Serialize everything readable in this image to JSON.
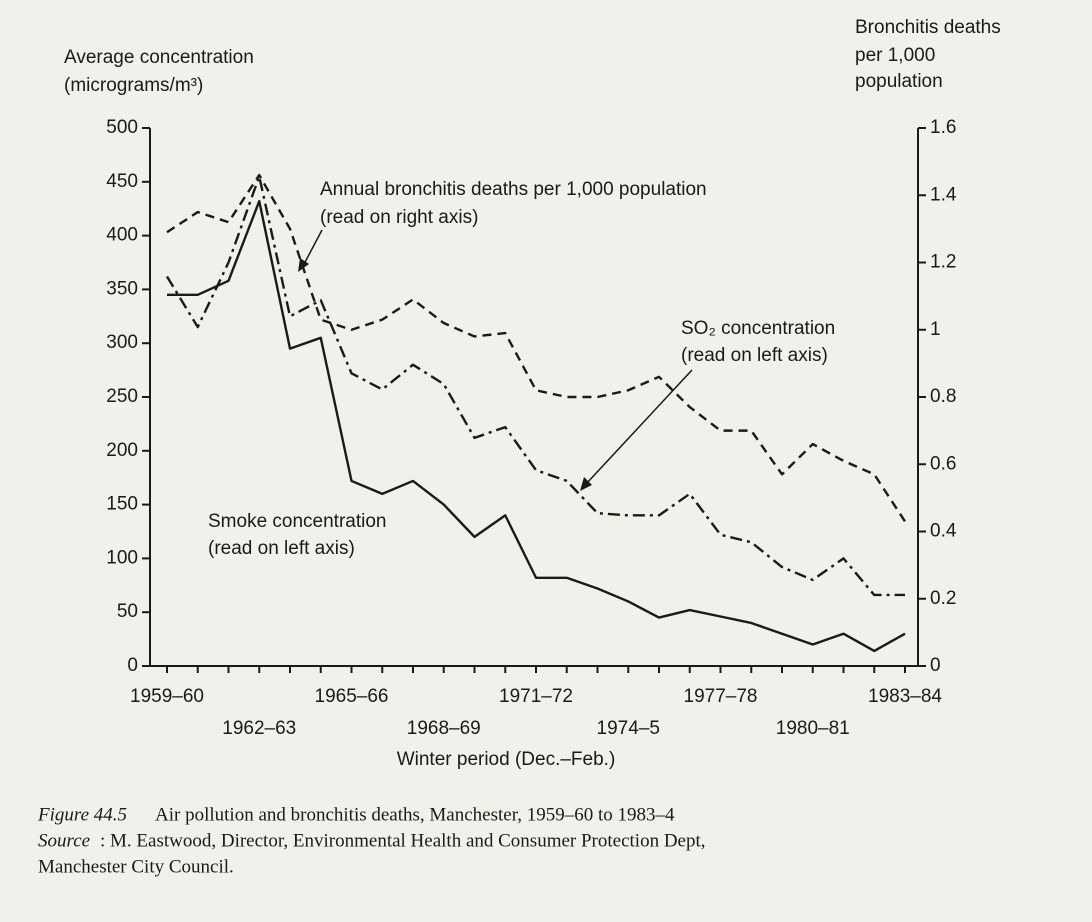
{
  "chart_data": {
    "type": "line",
    "categories": [
      "1959–60",
      null,
      null,
      "1962–63",
      null,
      null,
      "1965–66",
      null,
      null,
      "1968–69",
      null,
      null,
      "1971–72",
      null,
      null,
      "1974–5",
      null,
      null,
      "1977–78",
      null,
      null,
      "1980–81",
      null,
      null,
      "1983–84"
    ],
    "series": [
      {
        "name": "Smoke concentration",
        "color": "#1a1a1a",
        "style": "solid",
        "axis": "y",
        "values": [
          345,
          345,
          358,
          432,
          295,
          305,
          172,
          160,
          172,
          150,
          120,
          140,
          82,
          82,
          72,
          60,
          45,
          52,
          46,
          40,
          30,
          20,
          30,
          14,
          30
        ]
      },
      {
        "name": "SO₂ concentration",
        "color": "#1a1a1a",
        "style": "dashdot",
        "axis": "y",
        "values": [
          362,
          315,
          375,
          455,
          325,
          340,
          272,
          257,
          280,
          262,
          212,
          222,
          182,
          172,
          142,
          140,
          140,
          160,
          122,
          115,
          92,
          80,
          100,
          66,
          66
        ]
      },
      {
        "name": "Annual bronchitis deaths per 1,000 population",
        "color": "#1a1a1a",
        "style": "dashed",
        "axis": "y2",
        "values": [
          1.29,
          1.35,
          1.32,
          1.46,
          1.3,
          1.03,
          1.0,
          1.03,
          1.09,
          1.02,
          0.98,
          0.99,
          0.82,
          0.8,
          0.8,
          0.82,
          0.86,
          0.77,
          0.7,
          0.7,
          0.57,
          0.66,
          0.61,
          0.57,
          0.43
        ]
      }
    ],
    "annotations": {
      "bronchitis": [
        "Annual bronchitis deaths per 1,000 population",
        "(read on right axis)"
      ],
      "so2": [
        "SO₂ concentration",
        "(read on left axis)"
      ],
      "smoke": [
        "Smoke concentration",
        "(read on left axis)"
      ]
    },
    "y_label": [
      "Average concentration",
      "(micrograms/m³)"
    ],
    "y2_label": [
      "Bronchitis deaths",
      "per 1,000",
      "population"
    ],
    "x_label": "Winter period (Dec.–Feb.)",
    "ylim": [
      0,
      500
    ],
    "yticks": [
      0,
      50,
      100,
      150,
      200,
      250,
      300,
      350,
      400,
      450,
      500
    ],
    "y2lim": [
      0,
      1.6
    ],
    "y2ticks": [
      0,
      0.2,
      0.4,
      0.6,
      0.8,
      1,
      1.2,
      1.4,
      1.6
    ],
    "grid": false,
    "caption": {
      "figure": "Figure 44.5",
      "title": "Air pollution and bronchitis deaths, Manchester, 1959–60 to 1983–4",
      "source": [
        "Source",
        ": M. Eastwood, Director, Environmental Health and Consumer Protection Dept,",
        "Manchester City Council."
      ]
    }
  }
}
